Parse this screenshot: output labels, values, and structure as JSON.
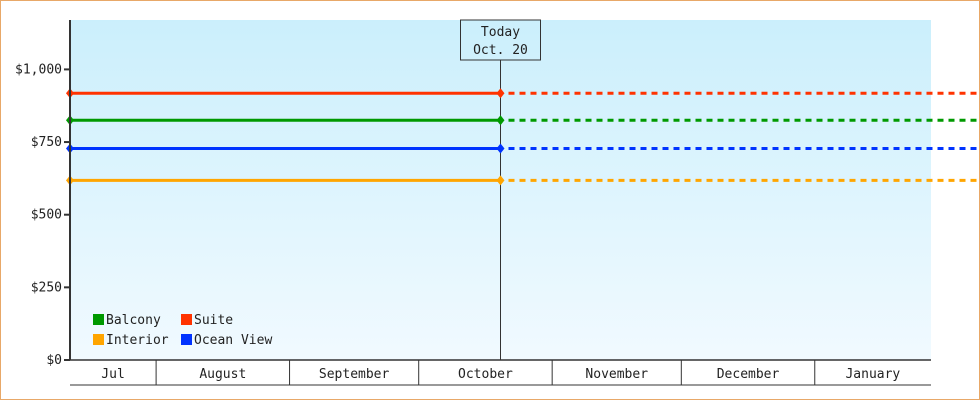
{
  "chart_data": {
    "type": "line",
    "title": "",
    "xlabel": "",
    "ylabel": "",
    "ylim": [
      0,
      1170
    ],
    "y_ticks": [
      0,
      250,
      500,
      750,
      1000
    ],
    "y_tick_labels": [
      "$0",
      "$250",
      "$500",
      "$750",
      "$1,000"
    ],
    "x_range": [
      "Jul 12",
      "Jan 28"
    ],
    "months": [
      {
        "label": "Jul",
        "start": "Jul 12",
        "end": "Aug 1"
      },
      {
        "label": "August",
        "start": "Aug 1",
        "end": "Sep 1"
      },
      {
        "label": "September",
        "start": "Sep 1",
        "end": "Oct 1"
      },
      {
        "label": "October",
        "start": "Oct 1",
        "end": "Nov 1"
      },
      {
        "label": "November",
        "start": "Nov 1",
        "end": "Dec 1"
      },
      {
        "label": "December",
        "start": "Dec 1",
        "end": "Jan 1"
      },
      {
        "label": "January",
        "start": "Jan 1",
        "end": "Jan 28"
      }
    ],
    "today": {
      "title": "Today",
      "label": "Oct. 20",
      "date": "Oct 20"
    },
    "grid": false,
    "legend_placement": "bottom-left",
    "series": [
      {
        "name": "Balcony",
        "color": "#009900",
        "points": [
          [
            "Jul 12",
            825
          ],
          [
            "Oct 20",
            825
          ]
        ],
        "projection": 825
      },
      {
        "name": "Suite",
        "color": "#ff3300",
        "points": [
          [
            "Jul 12",
            918
          ],
          [
            "Oct 20",
            918
          ]
        ],
        "projection": 918
      },
      {
        "name": "Interior",
        "color": "#ffa500",
        "points": [
          [
            "Jul 12",
            618
          ],
          [
            "Oct 20",
            618
          ]
        ],
        "projection": 618
      },
      {
        "name": "Ocean View",
        "color": "#0033ff",
        "points": [
          [
            "Jul 12",
            728
          ],
          [
            "Oct 20",
            728
          ]
        ],
        "projection": 728
      }
    ],
    "background_gradient": [
      "#cbeffc",
      "#f1faff"
    ],
    "frame_color": "#e8a868"
  }
}
